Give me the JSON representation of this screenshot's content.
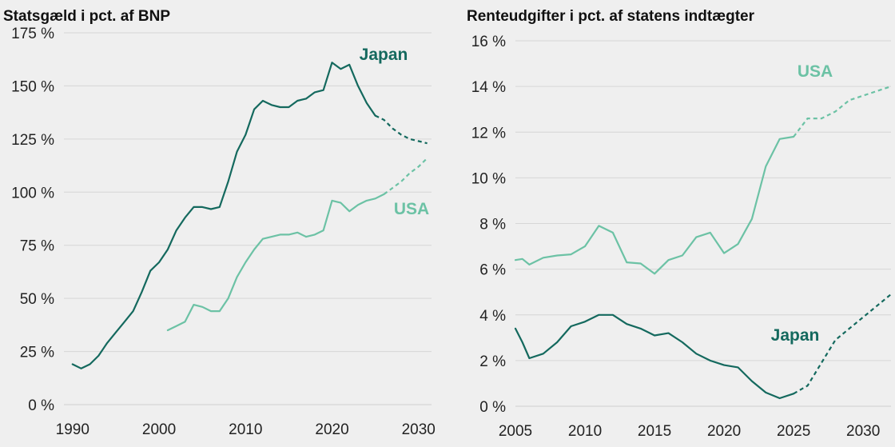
{
  "colors": {
    "japan": "#14695e",
    "usa": "#6cc2a5"
  },
  "chart_data": [
    {
      "type": "line",
      "title": "Statsgæld i pct. af BNP",
      "xlim": [
        1989,
        2031.5
      ],
      "ylim": [
        0,
        175
      ],
      "yticks": [
        0,
        25,
        50,
        75,
        100,
        125,
        150,
        175
      ],
      "ytick_labels": [
        "0 %",
        "25 %",
        "50 %",
        "75 %",
        "100 %",
        "125 %",
        "150 %",
        "175 %"
      ],
      "xticks": [
        1990,
        2000,
        2010,
        2020,
        2030
      ],
      "xtick_labels": [
        "1990",
        "2000",
        "2010",
        "2020",
        "2030"
      ],
      "grid": true,
      "series": [
        {
          "name": "Japan",
          "color_key": "japan",
          "x": [
            1990,
            1991,
            1992,
            1993,
            1994,
            1995,
            1996,
            1997,
            1998,
            1999,
            2000,
            2001,
            2002,
            2003,
            2004,
            2005,
            2006,
            2007,
            2008,
            2009,
            2010,
            2011,
            2012,
            2013,
            2014,
            2015,
            2016,
            2017,
            2018,
            2019,
            2020,
            2021,
            2022,
            2023,
            2024,
            2025
          ],
          "y": [
            19,
            17,
            19,
            23,
            29,
            34,
            39,
            44,
            53,
            63,
            67,
            73,
            82,
            88,
            93,
            93,
            92,
            93,
            105,
            119,
            127,
            139,
            143,
            141,
            140,
            140,
            143,
            144,
            147,
            148,
            161,
            158,
            160,
            150,
            142,
            136
          ],
          "projection_x": [
            2025,
            2026,
            2027,
            2028,
            2029,
            2030,
            2031
          ],
          "projection_y": [
            136,
            134,
            130,
            127,
            125,
            124,
            123
          ]
        },
        {
          "name": "USA",
          "color_key": "usa",
          "x": [
            2001,
            2002,
            2003,
            2004,
            2005,
            2006,
            2007,
            2008,
            2009,
            2010,
            2011,
            2012,
            2013,
            2014,
            2015,
            2016,
            2017,
            2018,
            2019,
            2020,
            2021,
            2022,
            2023,
            2024,
            2025,
            2026
          ],
          "y": [
            35,
            37,
            39,
            47,
            46,
            44,
            44,
            50,
            60,
            67,
            73,
            78,
            79,
            80,
            80,
            81,
            79,
            80,
            82,
            96,
            95,
            91,
            94,
            96,
            97,
            99
          ],
          "projection_x": [
            2026,
            2027,
            2028,
            2029,
            2030,
            2031
          ],
          "projection_y": [
            99,
            102,
            105,
            109,
            112,
            116
          ]
        }
      ]
    },
    {
      "type": "line",
      "title": "Renteudgifter i pct. af statens indtægter",
      "xlim": [
        2005,
        2032
      ],
      "ylim": [
        0,
        16
      ],
      "yticks": [
        0,
        2,
        4,
        6,
        8,
        10,
        12,
        14,
        16
      ],
      "ytick_labels": [
        "0 %",
        "2 %",
        "4 %",
        "6 %",
        "8 %",
        "10 %",
        "12 %",
        "14 %",
        "16 %"
      ],
      "xticks": [
        2005,
        2010,
        2015,
        2020,
        2025,
        2030
      ],
      "xtick_labels": [
        "2005",
        "2010",
        "2015",
        "2020",
        "2025",
        "2030"
      ],
      "grid": true,
      "series": [
        {
          "name": "USA",
          "color_key": "usa",
          "x": [
            2005,
            2005.5,
            2006,
            2007,
            2008,
            2009,
            2010,
            2011,
            2012,
            2013,
            2014,
            2015,
            2016,
            2017,
            2018,
            2019,
            2020,
            2021,
            2022,
            2023,
            2024,
            2025
          ],
          "y": [
            6.4,
            6.45,
            6.2,
            6.5,
            6.6,
            6.65,
            7.0,
            7.9,
            7.6,
            6.3,
            6.25,
            5.8,
            6.4,
            6.6,
            7.4,
            7.6,
            6.7,
            7.1,
            8.2,
            10.5,
            11.7,
            11.8
          ],
          "projection_x": [
            2025,
            2026,
            2027,
            2028,
            2029,
            2030,
            2031,
            2032
          ],
          "projection_y": [
            11.8,
            12.6,
            12.6,
            12.9,
            13.4,
            13.6,
            13.8,
            14.0
          ]
        },
        {
          "name": "Japan",
          "color_key": "japan",
          "x": [
            2005,
            2005.5,
            2006,
            2007,
            2008,
            2009,
            2010,
            2011,
            2012,
            2013,
            2014,
            2015,
            2016,
            2017,
            2018,
            2019,
            2020,
            2021,
            2022,
            2023,
            2024,
            2025
          ],
          "y": [
            3.4,
            2.8,
            2.1,
            2.3,
            2.8,
            3.5,
            3.7,
            4.0,
            4.0,
            3.6,
            3.4,
            3.1,
            3.2,
            2.8,
            2.3,
            2.0,
            1.8,
            1.7,
            1.1,
            0.6,
            0.35,
            0.55
          ],
          "projection_x": [
            2025,
            2026,
            2027,
            2028,
            2029,
            2030,
            2031,
            2032
          ],
          "projection_y": [
            0.55,
            0.9,
            1.9,
            2.9,
            3.4,
            3.9,
            4.4,
            4.9
          ]
        }
      ]
    }
  ]
}
